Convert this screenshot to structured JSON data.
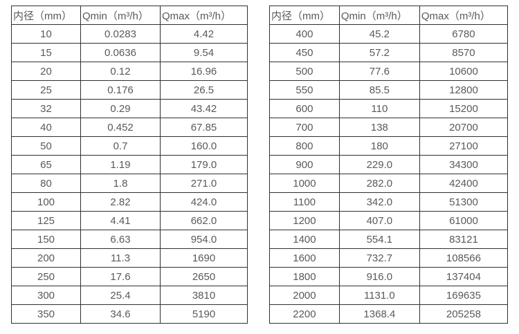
{
  "colors": {
    "border": "#2f2f2f",
    "text": "#595959",
    "background": "#ffffff"
  },
  "table_left": {
    "headers": [
      "内径（mm）",
      "Qmin（m³/h）",
      "Qmax（m³/h）"
    ],
    "rows": [
      [
        "10",
        "0.0283",
        "4.42"
      ],
      [
        "15",
        "0.0636",
        "9.54"
      ],
      [
        "20",
        "0.12",
        "16.96"
      ],
      [
        "25",
        "0.176",
        "26.5"
      ],
      [
        "32",
        "0.29",
        "43.42"
      ],
      [
        "40",
        "0.452",
        "67.85"
      ],
      [
        "50",
        "0.7",
        "160.0"
      ],
      [
        "65",
        "1.19",
        "179.0"
      ],
      [
        "80",
        "1.8",
        "271.0"
      ],
      [
        "100",
        "2.82",
        "424.0"
      ],
      [
        "125",
        "4.41",
        "662.0"
      ],
      [
        "150",
        "6.63",
        "954.0"
      ],
      [
        "200",
        "11.3",
        "1690"
      ],
      [
        "250",
        "17.6",
        "2650"
      ],
      [
        "300",
        "25.4",
        "3810"
      ],
      [
        "350",
        "34.6",
        "5190"
      ]
    ]
  },
  "table_right": {
    "headers": [
      "内径（mm）",
      "Qmin（m³/h）",
      "Qmax（m³/h）"
    ],
    "rows": [
      [
        "400",
        "45.2",
        "6780"
      ],
      [
        "450",
        "57.2",
        "8570"
      ],
      [
        "500",
        "77.6",
        "10600"
      ],
      [
        "550",
        "85.5",
        "12800"
      ],
      [
        "600",
        "110",
        "15200"
      ],
      [
        "700",
        "138",
        "20700"
      ],
      [
        "800",
        "180",
        "27100"
      ],
      [
        "900",
        "229.0",
        "34300"
      ],
      [
        "1000",
        "282.0",
        "42400"
      ],
      [
        "1100",
        "342.0",
        "51300"
      ],
      [
        "1200",
        "407.0",
        "61000"
      ],
      [
        "1400",
        "554.1",
        "83121"
      ],
      [
        "1600",
        "732.7",
        "108566"
      ],
      [
        "1800",
        "916.0",
        "137404"
      ],
      [
        "2000",
        "1131.0",
        "169635"
      ],
      [
        "2200",
        "1368.4",
        "205258"
      ]
    ]
  }
}
